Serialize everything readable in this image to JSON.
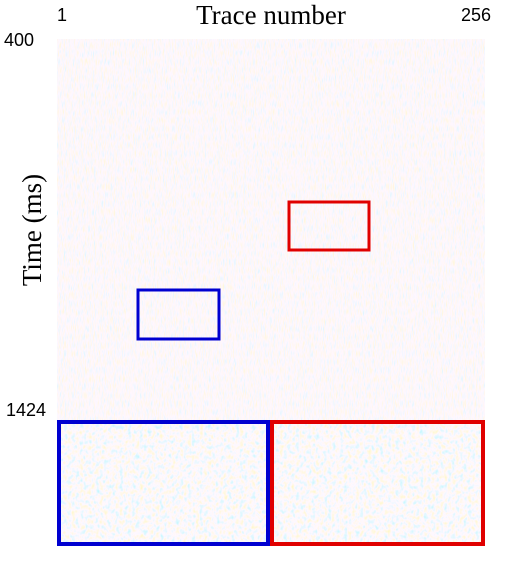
{
  "chart_data": {
    "type": "image",
    "title": "Trace number",
    "y_label": "Time (ms)",
    "xlim": [
      1,
      256
    ],
    "xticks": [
      1,
      256
    ],
    "ylim": [
      400,
      1424
    ],
    "yticks": [
      400,
      1424
    ]
  }
}
